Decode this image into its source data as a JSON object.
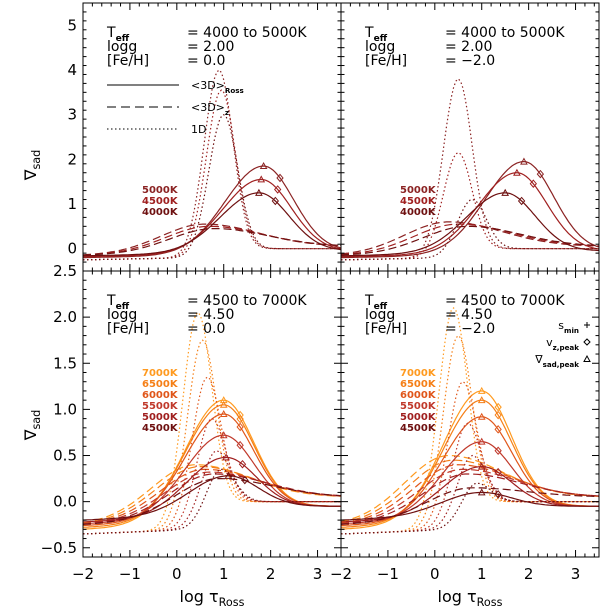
{
  "chart_data": {
    "type": "line",
    "x_axis": {
      "label": "log τ",
      "label_subscript": "Ross",
      "range": [
        -2,
        3.5
      ],
      "ticks": [
        "−2",
        "−1",
        "0",
        "1",
        "2",
        "3"
      ],
      "tick_values": [
        -2,
        -1,
        0,
        1,
        2,
        3
      ]
    },
    "y_axis": {
      "label": "∇",
      "label_subscript": "sad"
    },
    "panels": [
      {
        "id": "top-left",
        "ylim": [
          -0.5,
          5.5
        ],
        "y_ticks": [
          {
            "v": 0,
            "t": "0"
          },
          {
            "v": 1,
            "t": "1"
          },
          {
            "v": 2,
            "t": "2"
          },
          {
            "v": 3,
            "t": "3"
          },
          {
            "v": 4,
            "t": "4"
          },
          {
            "v": 5,
            "t": "5"
          }
        ],
        "info": {
          "teff_label": "T",
          "teff_sub": "eff",
          "teff_value": "= 4000 to 5000K",
          "logg_label": "logg",
          "logg_value": "= 2.00",
          "feh_label": "[Fe/H]",
          "feh_value": "= 0.0"
        },
        "legend": [
          {
            "style": "solid",
            "text": "<3D>",
            "sub": "Ross"
          },
          {
            "style": "dashed",
            "text": "<3D>",
            "sub": "z"
          },
          {
            "style": "dotted",
            "text": "1D",
            "sub": ""
          }
        ],
        "labels": [
          "5000K",
          "4500K",
          "4000K"
        ],
        "series": [
          {
            "name": "5000K",
            "color": "#8b2323",
            "peak_x": 1.85,
            "peak_y": 1.85,
            "d1_x": 0.9,
            "d1_y": 4.0,
            "dz_x": 0.6,
            "dz_y": 0.55
          },
          {
            "name": "4500K",
            "color": "#a02020",
            "peak_x": 1.8,
            "peak_y": 1.55,
            "d1_x": 0.95,
            "d1_y": 3.55,
            "dz_x": 0.7,
            "dz_y": 0.5
          },
          {
            "name": "4000K",
            "color": "#6e1010",
            "peak_x": 1.75,
            "peak_y": 1.25,
            "d1_x": 1.0,
            "d1_y": 3.0,
            "dz_x": 0.8,
            "dz_y": 0.45
          }
        ]
      },
      {
        "id": "top-right",
        "ylim": [
          -0.5,
          5.5
        ],
        "y_ticks": [],
        "info": {
          "teff_label": "T",
          "teff_sub": "eff",
          "teff_value": "= 4000 to 5000K",
          "logg_label": "logg",
          "logg_value": "= 2.00",
          "feh_label": "[Fe/H]",
          "feh_value": "= −2.0"
        },
        "legend": [],
        "labels": [
          "5000K",
          "4500K",
          "4000K"
        ],
        "series": [
          {
            "name": "5000K",
            "color": "#8b2323",
            "peak_x": 1.9,
            "peak_y": 1.95,
            "d1_x": 0.5,
            "d1_y": 3.8,
            "dz_x": 0.3,
            "dz_y": 0.6
          },
          {
            "name": "4500K",
            "color": "#a02020",
            "peak_x": 1.75,
            "peak_y": 1.7,
            "d1_x": 0.5,
            "d1_y": 2.15,
            "dz_x": 0.5,
            "dz_y": 0.55
          },
          {
            "name": "4000K",
            "color": "#6e1010",
            "peak_x": 1.5,
            "peak_y": 1.25,
            "d1_x": 0.8,
            "d1_y": 1.1,
            "dz_x": 0.7,
            "dz_y": 0.5
          }
        ]
      },
      {
        "id": "bottom-left",
        "ylim": [
          -0.6,
          2.5
        ],
        "y_ticks": [
          {
            "v": -0.5,
            "t": "−0.5"
          },
          {
            "v": 0.0,
            "t": "0.0"
          },
          {
            "v": 0.5,
            "t": "0.5"
          },
          {
            "v": 1.0,
            "t": "1.0"
          },
          {
            "v": 1.5,
            "t": "1.5"
          },
          {
            "v": 2.0,
            "t": "2.0"
          },
          {
            "v": 2.5,
            "t": "2.5"
          }
        ],
        "info": {
          "teff_label": "T",
          "teff_sub": "eff",
          "teff_value": "= 4500 to 7000K",
          "logg_label": "logg",
          "logg_value": "= 4.50",
          "feh_label": "[Fe/H]",
          "feh_value": "= 0.0"
        },
        "legend": [],
        "labels": [
          "7000K",
          "6500K",
          "6000K",
          "5500K",
          "5000K",
          "4500K"
        ],
        "series": [
          {
            "name": "7000K",
            "color": "#ff9a1f",
            "peak_x": 1.0,
            "peak_y": 1.1,
            "d1_x": 0.45,
            "d1_y": 2.05,
            "dz_x": 0.4,
            "dz_y": 0.4
          },
          {
            "name": "6500K",
            "color": "#f57f17",
            "peak_x": 1.0,
            "peak_y": 1.05,
            "d1_x": 0.55,
            "d1_y": 1.75,
            "dz_x": 0.5,
            "dz_y": 0.38
          },
          {
            "name": "6000K",
            "color": "#e0561a",
            "peak_x": 1.0,
            "peak_y": 0.95,
            "d1_x": 0.65,
            "d1_y": 1.35,
            "dz_x": 0.6,
            "dz_y": 0.35
          },
          {
            "name": "5500K",
            "color": "#c0392b",
            "peak_x": 1.0,
            "peak_y": 0.72,
            "d1_x": 0.75,
            "d1_y": 0.9,
            "dz_x": 0.7,
            "dz_y": 0.32
          },
          {
            "name": "5000K",
            "color": "#a01f1f",
            "peak_x": 1.05,
            "peak_y": 0.48,
            "d1_x": 0.85,
            "d1_y": 0.55,
            "dz_x": 0.8,
            "dz_y": 0.3
          },
          {
            "name": "4500K",
            "color": "#6e1010",
            "peak_x": 1.1,
            "peak_y": 0.28,
            "d1_x": 0.95,
            "d1_y": 0.35,
            "dz_x": 0.9,
            "dz_y": 0.25
          }
        ]
      },
      {
        "id": "bottom-right",
        "ylim": [
          -0.6,
          2.5
        ],
        "y_ticks": [],
        "info": {
          "teff_label": "T",
          "teff_sub": "eff",
          "teff_value": "= 4500 to 7000K",
          "logg_label": "logg",
          "logg_value": "= 4.50",
          "feh_label": "[Fe/H]",
          "feh_value": "= −2.0"
        },
        "legend": [
          {
            "style": "plus",
            "text": "s",
            "sub": "min"
          },
          {
            "style": "diamond",
            "text": "v",
            "sub": "z,peak"
          },
          {
            "style": "triangle",
            "text": "∇",
            "sub": "sad,peak"
          }
        ],
        "labels": [
          "7000K",
          "6500K",
          "6000K",
          "5500K",
          "5000K",
          "4500K"
        ],
        "series": [
          {
            "name": "7000K",
            "color": "#ff9a1f",
            "peak_x": 1.0,
            "peak_y": 1.2,
            "d1_x": 0.4,
            "d1_y": 2.1,
            "dz_x": 0.3,
            "dz_y": 0.5
          },
          {
            "name": "6500K",
            "color": "#f57f17",
            "peak_x": 1.0,
            "peak_y": 1.1,
            "d1_x": 0.5,
            "d1_y": 1.8,
            "dz_x": 0.4,
            "dz_y": 0.45
          },
          {
            "name": "6000K",
            "color": "#e0561a",
            "peak_x": 1.0,
            "peak_y": 0.92,
            "d1_x": 0.6,
            "d1_y": 1.3,
            "dz_x": 0.5,
            "dz_y": 0.4
          },
          {
            "name": "5500K",
            "color": "#c0392b",
            "peak_x": 1.0,
            "peak_y": 0.65,
            "d1_x": 0.7,
            "d1_y": 0.85,
            "dz_x": 0.6,
            "dz_y": 0.35
          },
          {
            "name": "5000K",
            "color": "#a01f1f",
            "peak_x": 1.0,
            "peak_y": 0.38,
            "d1_x": 0.8,
            "d1_y": 0.5,
            "dz_x": 0.7,
            "dz_y": 0.3
          },
          {
            "name": "4500K",
            "color": "#6e1010",
            "peak_x": 1.0,
            "peak_y": 0.1,
            "d1_x": 0.9,
            "d1_y": 0.2,
            "dz_x": 0.8,
            "dz_y": 0.15
          }
        ]
      }
    ]
  }
}
